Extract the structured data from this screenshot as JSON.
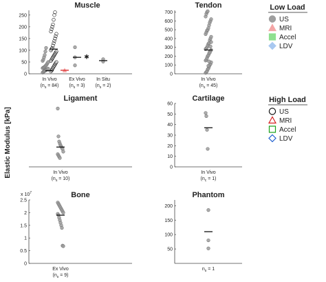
{
  "figure": {
    "ylabel": "Elastic Modulus [kPa]"
  },
  "legend": {
    "low_load": {
      "title": "Low Load",
      "items": [
        {
          "label": "US",
          "marker": "circle",
          "filled": true,
          "color": "#9e9e9e"
        },
        {
          "label": "MRI",
          "marker": "triangle",
          "filled": true,
          "color": "#f4a6a6"
        },
        {
          "label": "Accel",
          "marker": "square",
          "filled": true,
          "color": "#8fe08f"
        },
        {
          "label": "LDV",
          "marker": "diamond",
          "filled": true,
          "color": "#a8c8f0"
        }
      ]
    },
    "high_load": {
      "title": "High Load",
      "items": [
        {
          "label": "US",
          "marker": "circle",
          "filled": false,
          "color": "#111111"
        },
        {
          "label": "MRI",
          "marker": "triangle",
          "filled": false,
          "color": "#d62020"
        },
        {
          "label": "Accel",
          "marker": "square",
          "filled": false,
          "color": "#18a018"
        },
        {
          "label": "LDV",
          "marker": "diamond",
          "filled": false,
          "color": "#1f5fd0"
        }
      ]
    }
  },
  "chart_data": [
    {
      "id": "muscle",
      "type": "scatter",
      "title": "Muscle",
      "ylim": [
        0,
        270
      ],
      "yticks": [
        "0",
        "50",
        "100",
        "150",
        "200",
        "250"
      ],
      "ytick_values": [
        0,
        50,
        100,
        150,
        200,
        250
      ],
      "groups": [
        {
          "line1": "In Vivo",
          "line2": "(n",
          "sub": "s",
          "line2b": " = 84)",
          "median": 13,
          "clusters": [
            {
              "marker": "circle",
              "filled": true,
              "color": "#9e9e9e",
              "offset": -6,
              "values": [
                5,
                8,
                10,
                12,
                14,
                16,
                18,
                20,
                22,
                24,
                26,
                28,
                30,
                33,
                36,
                40,
                45,
                50,
                55,
                60,
                70,
                80,
                95,
                110
              ]
            },
            {
              "marker": "circle",
              "filled": false,
              "color": "#111111",
              "offset": 6,
              "values": [
                10,
                15,
                20,
                25,
                30,
                35,
                40,
                45,
                50,
                55,
                60,
                65,
                70,
                75,
                80,
                85,
                90,
                95,
                100,
                105,
                110,
                120,
                130,
                140,
                150,
                160,
                170,
                180,
                190,
                200,
                210,
                230,
                250,
                262
              ],
              "median": 105
            },
            {
              "marker": "triangle",
              "filled": true,
              "color": "#f4a6a6",
              "offset": 22,
              "values": [
                13,
                14,
                16
              ],
              "median": 15,
              "median_color": "#d62020"
            }
          ]
        },
        {
          "line1": "Ex Vivo",
          "line2": "(n",
          "sub": "s",
          "line2b": " = 3)",
          "median": 70,
          "clusters": [
            {
              "marker": "circle",
              "filled": true,
              "color": "#9e9e9e",
              "offset": -3,
              "values": [
                36,
                70,
                113
              ]
            },
            {
              "marker": "star",
              "filled": true,
              "color": "#f08080",
              "offset": 14,
              "values": [
                72
              ]
            }
          ]
        },
        {
          "line1": "In Situ",
          "line2": "(n",
          "sub": "s",
          "line2b": " = 2)",
          "median": 56,
          "clusters": [
            {
              "marker": "circle",
              "filled": true,
              "color": "#9e9e9e",
              "offset": 0,
              "values": [
                52,
                62
              ]
            }
          ]
        }
      ]
    },
    {
      "id": "tendon",
      "type": "scatter",
      "title": "Tendon",
      "ylim": [
        0,
        720
      ],
      "yticks": [
        "0",
        "100",
        "200",
        "300",
        "400",
        "500",
        "600",
        "700"
      ],
      "ytick_values": [
        0,
        100,
        200,
        300,
        400,
        500,
        600,
        700
      ],
      "groups": [
        {
          "line1": "In Vivo",
          "line2": "(n",
          "sub": "s",
          "line2b": " = 45)",
          "median": 270,
          "clusters": [
            {
              "marker": "circle",
              "filled": true,
              "color": "#9e9e9e",
              "offset": 0,
              "values": [
                10,
                20,
                30,
                50,
                60,
                80,
                100,
                110,
                130,
                150,
                160,
                180,
                200,
                210,
                230,
                250,
                260,
                270,
                280,
                290,
                300,
                320,
                340,
                350,
                380,
                400,
                420,
                450,
                470,
                490,
                500,
                520,
                550,
                580,
                600,
                620,
                650,
                680,
                700,
                710,
                90,
                140,
                240,
                310,
                360
              ]
            }
          ]
        }
      ]
    },
    {
      "id": "ligament",
      "type": "scatter",
      "title": "Ligament",
      "ylim": [
        0,
        250
      ],
      "yticks": [],
      "ytick_values": [],
      "groups": [
        {
          "line1": "In Vivo",
          "line2": "(n",
          "sub": "s",
          "line2b": " = 10)",
          "median": 78,
          "clusters": [
            {
              "marker": "circle",
              "filled": true,
              "color": "#9e9e9e",
              "offset": 0,
              "values": [
                230,
                120,
                100,
                92,
                85,
                80,
                75,
                70,
                60,
                50,
                45,
                40,
                35
              ]
            }
          ]
        }
      ]
    },
    {
      "id": "cartilage",
      "type": "scatter",
      "title": "Cartilage",
      "ylim": [
        0,
        60
      ],
      "yticks": [
        "0",
        "10",
        "20",
        "30",
        "40",
        "50",
        "60"
      ],
      "ytick_values": [
        0,
        10,
        20,
        30,
        40,
        50,
        60
      ],
      "groups": [
        {
          "line1": "In Vivo",
          "line2": "(n",
          "sub": "c",
          "line2b": " = 1)",
          "median": 37,
          "clusters": [
            {
              "marker": "circle",
              "filled": true,
              "color": "#9e9e9e",
              "offset": 0,
              "values": [
                51,
                48,
                35,
                17
              ]
            }
          ]
        }
      ]
    },
    {
      "id": "bone",
      "type": "scatter",
      "title": "Bone",
      "exponent_label": "x 10",
      "exponent_power": "7",
      "ylim": [
        0,
        25000000
      ],
      "yticks": [
        "0",
        "0.5",
        "1",
        "1.5",
        "2",
        "2.5"
      ],
      "ytick_values": [
        0,
        5000000,
        10000000,
        15000000,
        20000000,
        25000000
      ],
      "groups": [
        {
          "line1": "Ex Vivo",
          "line2": "(n",
          "sub": "s",
          "line2b": " = 9)",
          "median": 19000000,
          "clusters": [
            {
              "marker": "circle",
              "filled": true,
              "color": "#9e9e9e",
              "offset": 0,
              "values": [
                24000000,
                23500000,
                23000000,
                22500000,
                22000000,
                21500000,
                21000000,
                20500000,
                20000000,
                19500000,
                19000000,
                18000000,
                17000000,
                16000000,
                15000000,
                14000000,
                7000000,
                6800000
              ]
            }
          ]
        }
      ]
    },
    {
      "id": "phantom",
      "type": "scatter",
      "title": "Phantom",
      "ylim": [
        0,
        220
      ],
      "yticks": [
        "50",
        "100",
        "150",
        "200"
      ],
      "ytick_values": [
        50,
        100,
        150,
        200
      ],
      "groups": [
        {
          "line1": "",
          "line2": "n",
          "sub": "s",
          "line2b": " = 1",
          "median": 110,
          "clusters": [
            {
              "marker": "circle",
              "filled": true,
              "color": "#9e9e9e",
              "offset": 0,
              "values": [
                185,
                80,
                52
              ]
            }
          ]
        }
      ]
    }
  ]
}
